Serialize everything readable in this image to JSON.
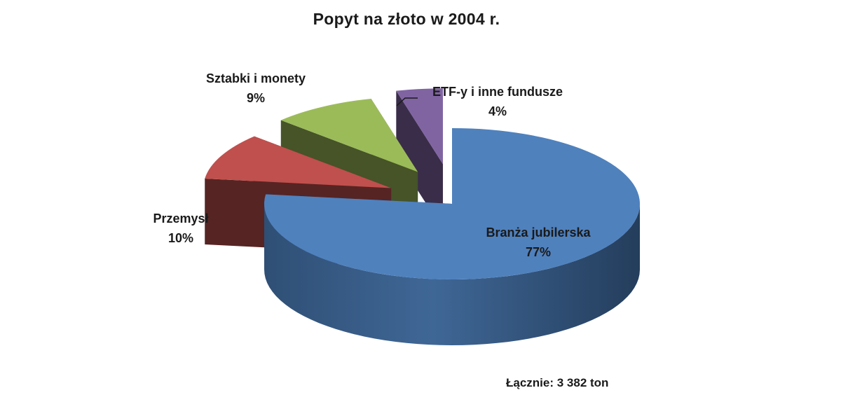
{
  "chart_data": {
    "type": "pie",
    "title": "Popyt na złoto w 2004 r.",
    "slices": [
      {
        "label": "Branża jubilerska",
        "value": 77,
        "value_label": "77%",
        "color": "#4F81BD"
      },
      {
        "label": "Przemysł",
        "value": 10,
        "value_label": "10%",
        "color": "#C0504D"
      },
      {
        "label": "Sztabki i monety",
        "value": 9,
        "value_label": "9%",
        "color": "#9BBB59"
      },
      {
        "label": "ETF-y i inne fundusze",
        "value": 4,
        "value_label": "4%",
        "color": "#8064A2"
      }
    ],
    "total_note": "Łącznie: 3 382 ton",
    "style": "3d-exploded"
  }
}
